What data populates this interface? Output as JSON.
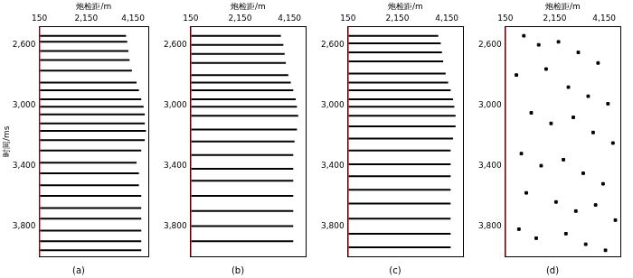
{
  "chart_data": [
    {
      "type": "line",
      "title": "(a)",
      "x_label": "炮检距/m",
      "y_label": "时间/ms",
      "grid": false,
      "xlim": [
        150,
        4800
      ],
      "xticks": [
        150,
        2150,
        4150
      ],
      "ylim": [
        2480,
        4000
      ],
      "yticks": [
        2600,
        3000,
        3400,
        3800
      ],
      "series": [
        {
          "color": "#e0303a",
          "x": [
            150,
            150
          ],
          "values": [
            2480,
            4000
          ]
        },
        {
          "color": "#000000",
          "x": [
            150,
            3850
          ],
          "values": [
            2540,
            2540
          ]
        },
        {
          "color": "#000000",
          "x": [
            150,
            3900
          ],
          "values": [
            2580,
            2580
          ]
        },
        {
          "color": "#000000",
          "x": [
            150,
            3950
          ],
          "values": [
            2640,
            2640
          ]
        },
        {
          "color": "#000000",
          "x": [
            150,
            4000
          ],
          "values": [
            2700,
            2700
          ]
        },
        {
          "color": "#000000",
          "x": [
            150,
            4100
          ],
          "values": [
            2770,
            2770
          ]
        },
        {
          "color": "#000000",
          "x": [
            150,
            4300
          ],
          "values": [
            2850,
            2850
          ]
        },
        {
          "color": "#000000",
          "x": [
            150,
            4400
          ],
          "values": [
            2900,
            2900
          ]
        },
        {
          "color": "#000000",
          "x": [
            150,
            4500
          ],
          "values": [
            2960,
            2960
          ]
        },
        {
          "color": "#000000",
          "x": [
            150,
            4600
          ],
          "values": [
            3010,
            3010
          ]
        },
        {
          "color": "#000000",
          "x": [
            150,
            4650
          ],
          "values": [
            3060,
            3060
          ]
        },
        {
          "color": "#000000",
          "x": [
            150,
            4650
          ],
          "values": [
            3120,
            3120
          ]
        },
        {
          "color": "#000000",
          "x": [
            150,
            4700
          ],
          "values": [
            3170,
            3170
          ]
        },
        {
          "color": "#000000",
          "x": [
            150,
            4650
          ],
          "values": [
            3230,
            3230
          ]
        },
        {
          "color": "#000000",
          "x": [
            150,
            4500
          ],
          "values": [
            3300,
            3300
          ]
        },
        {
          "color": "#000000",
          "x": [
            150,
            4300
          ],
          "values": [
            3380,
            3380
          ]
        },
        {
          "color": "#000000",
          "x": [
            150,
            4400
          ],
          "values": [
            3450,
            3450
          ]
        },
        {
          "color": "#000000",
          "x": [
            150,
            4400
          ],
          "values": [
            3530,
            3530
          ]
        },
        {
          "color": "#000000",
          "x": [
            150,
            4500
          ],
          "values": [
            3600,
            3600
          ]
        },
        {
          "color": "#000000",
          "x": [
            150,
            4500
          ],
          "values": [
            3680,
            3680
          ]
        },
        {
          "color": "#000000",
          "x": [
            150,
            4500
          ],
          "values": [
            3750,
            3750
          ]
        },
        {
          "color": "#000000",
          "x": [
            150,
            4500
          ],
          "values": [
            3830,
            3830
          ]
        },
        {
          "color": "#000000",
          "x": [
            150,
            4500
          ],
          "values": [
            3900,
            3900
          ]
        },
        {
          "color": "#000000",
          "x": [
            150,
            4500
          ],
          "values": [
            3960,
            3960
          ]
        }
      ]
    },
    {
      "type": "line",
      "title": "(b)",
      "x_label": "炮检距/m",
      "grid": false,
      "xlim": [
        150,
        4800
      ],
      "xticks": [
        150,
        2150,
        4150
      ],
      "ylim": [
        2480,
        4000
      ],
      "yticks": [
        2600,
        3000,
        3400,
        3800
      ],
      "series": [
        {
          "color": "#e0303a",
          "x": [
            150,
            150
          ],
          "values": [
            2480,
            4000
          ]
        },
        {
          "color": "#000000",
          "x": [
            150,
            3800
          ],
          "values": [
            2540,
            2540
          ]
        },
        {
          "color": "#000000",
          "x": [
            150,
            3900
          ],
          "values": [
            2600,
            2600
          ]
        },
        {
          "color": "#000000",
          "x": [
            150,
            3950
          ],
          "values": [
            2660,
            2660
          ]
        },
        {
          "color": "#000000",
          "x": [
            150,
            4000
          ],
          "values": [
            2720,
            2720
          ]
        },
        {
          "color": "#000000",
          "x": [
            150,
            4100
          ],
          "values": [
            2800,
            2800
          ]
        },
        {
          "color": "#000000",
          "x": [
            150,
            4200
          ],
          "values": [
            2850,
            2850
          ]
        },
        {
          "color": "#000000",
          "x": [
            150,
            4300
          ],
          "values": [
            2900,
            2900
          ]
        },
        {
          "color": "#000000",
          "x": [
            150,
            4400
          ],
          "values": [
            2960,
            2960
          ]
        },
        {
          "color": "#000000",
          "x": [
            150,
            4450
          ],
          "values": [
            3010,
            3010
          ]
        },
        {
          "color": "#000000",
          "x": [
            150,
            4500
          ],
          "values": [
            3070,
            3070
          ]
        },
        {
          "color": "#000000",
          "x": [
            150,
            4450
          ],
          "values": [
            3160,
            3160
          ]
        },
        {
          "color": "#000000",
          "x": [
            150,
            4350
          ],
          "values": [
            3240,
            3240
          ]
        },
        {
          "color": "#000000",
          "x": [
            150,
            4300
          ],
          "values": [
            3330,
            3330
          ]
        },
        {
          "color": "#000000",
          "x": [
            150,
            4300
          ],
          "values": [
            3420,
            3420
          ]
        },
        {
          "color": "#000000",
          "x": [
            150,
            4300
          ],
          "values": [
            3500,
            3500
          ]
        },
        {
          "color": "#000000",
          "x": [
            150,
            4300
          ],
          "values": [
            3600,
            3600
          ]
        },
        {
          "color": "#000000",
          "x": [
            150,
            4300
          ],
          "values": [
            3700,
            3700
          ]
        },
        {
          "color": "#000000",
          "x": [
            150,
            4300
          ],
          "values": [
            3800,
            3800
          ]
        },
        {
          "color": "#000000",
          "x": [
            150,
            4300
          ],
          "values": [
            3900,
            3900
          ]
        }
      ]
    },
    {
      "type": "line",
      "title": "(c)",
      "x_label": "炮检距/m",
      "grid": false,
      "xlim": [
        150,
        4800
      ],
      "xticks": [
        150,
        2150,
        4150
      ],
      "ylim": [
        2480,
        4000
      ],
      "yticks": [
        2600,
        3000,
        3400,
        3800
      ],
      "series": [
        {
          "color": "#e0303a",
          "x": [
            150,
            150
          ],
          "values": [
            2480,
            4000
          ]
        },
        {
          "color": "#000000",
          "x": [
            150,
            3800
          ],
          "values": [
            2540,
            2540
          ]
        },
        {
          "color": "#000000",
          "x": [
            150,
            3900
          ],
          "values": [
            2590,
            2590
          ]
        },
        {
          "color": "#000000",
          "x": [
            150,
            3950
          ],
          "values": [
            2650,
            2650
          ]
        },
        {
          "color": "#000000",
          "x": [
            150,
            4000
          ],
          "values": [
            2710,
            2710
          ]
        },
        {
          "color": "#000000",
          "x": [
            150,
            4100
          ],
          "values": [
            2790,
            2790
          ]
        },
        {
          "color": "#000000",
          "x": [
            150,
            4200
          ],
          "values": [
            2850,
            2850
          ]
        },
        {
          "color": "#000000",
          "x": [
            150,
            4300
          ],
          "values": [
            2900,
            2900
          ]
        },
        {
          "color": "#000000",
          "x": [
            150,
            4400
          ],
          "values": [
            2960,
            2960
          ]
        },
        {
          "color": "#000000",
          "x": [
            150,
            4450
          ],
          "values": [
            3010,
            3010
          ]
        },
        {
          "color": "#000000",
          "x": [
            150,
            4500
          ],
          "values": [
            3070,
            3070
          ]
        },
        {
          "color": "#000000",
          "x": [
            150,
            4500
          ],
          "values": [
            3140,
            3140
          ]
        },
        {
          "color": "#000000",
          "x": [
            150,
            4400
          ],
          "values": [
            3220,
            3220
          ]
        },
        {
          "color": "#000000",
          "x": [
            150,
            4300
          ],
          "values": [
            3300,
            3300
          ]
        },
        {
          "color": "#000000",
          "x": [
            150,
            4300
          ],
          "values": [
            3390,
            3390
          ]
        },
        {
          "color": "#000000",
          "x": [
            150,
            4300
          ],
          "values": [
            3470,
            3470
          ]
        },
        {
          "color": "#000000",
          "x": [
            150,
            4300
          ],
          "values": [
            3560,
            3560
          ]
        },
        {
          "color": "#000000",
          "x": [
            150,
            4300
          ],
          "values": [
            3650,
            3650
          ]
        },
        {
          "color": "#000000",
          "x": [
            150,
            4300
          ],
          "values": [
            3750,
            3750
          ]
        },
        {
          "color": "#000000",
          "x": [
            150,
            4300
          ],
          "values": [
            3850,
            3850
          ]
        },
        {
          "color": "#000000",
          "x": [
            150,
            4300
          ],
          "values": [
            3940,
            3940
          ]
        }
      ]
    },
    {
      "type": "scatter",
      "title": "(d)",
      "x_label": "炮检距/m",
      "grid": false,
      "xlim": [
        150,
        4800
      ],
      "xticks": [
        150,
        2150,
        4150
      ],
      "ylim": [
        2480,
        4000
      ],
      "yticks": [
        2600,
        3000,
        3400,
        3800
      ],
      "series": [
        {
          "type": "line",
          "color": "#e0303a",
          "x": [
            150,
            150
          ],
          "values": [
            2480,
            4000
          ]
        },
        {
          "color": "#000000",
          "marker": "square",
          "x": [
            900,
            1500,
            2300,
            3100,
            3900,
            600,
            1800,
            2700,
            3500,
            4300,
            1200,
            2000,
            2900,
            3700,
            4500,
            800,
            1600,
            2500,
            3300,
            4100,
            1000,
            2200,
            3000,
            3800,
            4600,
            700,
            1400,
            2600,
            3400,
            4200
          ],
          "values": [
            2540,
            2600,
            2580,
            2650,
            2720,
            2800,
            2760,
            2880,
            2940,
            2990,
            3050,
            3120,
            3080,
            3180,
            3250,
            3320,
            3400,
            3360,
            3450,
            3520,
            3580,
            3640,
            3700,
            3660,
            3760,
            3820,
            3880,
            3850,
            3920,
            3960
          ]
        }
      ]
    }
  ]
}
